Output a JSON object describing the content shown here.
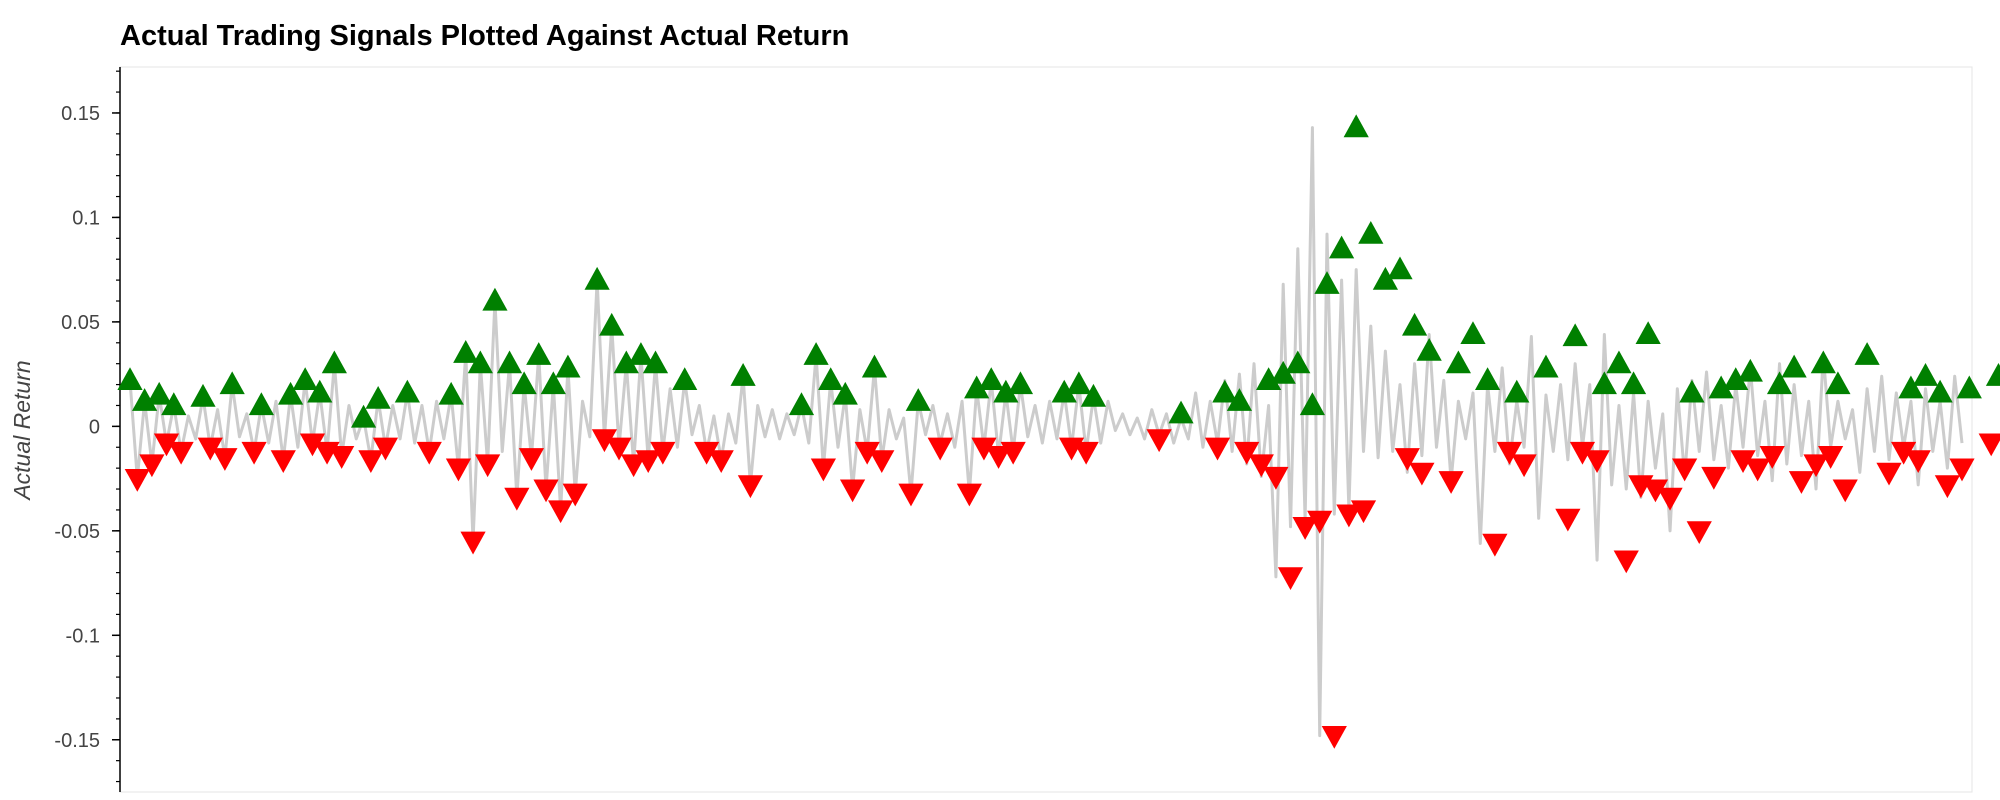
{
  "chart_data": {
    "type": "line",
    "title": "Actual Trading Signals Plotted Against Actual Return",
    "xlabel": "",
    "ylabel": "Actual Return",
    "ylim": [
      -0.175,
      0.172
    ],
    "yticks": [
      {
        "value": 0.15,
        "label": "0.15"
      },
      {
        "value": 0.1,
        "label": "0.1"
      },
      {
        "value": 0.05,
        "label": "0.05"
      },
      {
        "value": 0,
        "label": "0"
      },
      {
        "value": -0.05,
        "label": "-0.05"
      },
      {
        "value": -0.1,
        "label": "-0.1"
      },
      {
        "value": -0.15,
        "label": "-0.15"
      }
    ],
    "x_ticks_shown": false,
    "grid": false,
    "series": [
      {
        "marker": "line",
        "color": "#cccccc"
      },
      {
        "marker": "triangle-up",
        "color": "#008000"
      },
      {
        "marker": "triangle-down",
        "color": "#ff0000"
      }
    ],
    "returns": [
      0.022,
      -0.025,
      0.012,
      -0.018,
      0.015,
      -0.008,
      0.01,
      -0.012,
      0.005,
      -0.006,
      0.014,
      -0.01,
      0.008,
      -0.015,
      0.02,
      -0.005,
      0.006,
      -0.012,
      0.01,
      -0.008,
      0.012,
      -0.016,
      0.015,
      -0.01,
      0.022,
      -0.008,
      0.016,
      -0.012,
      0.03,
      -0.014,
      0.01,
      -0.006,
      0.004,
      -0.016,
      0.013,
      -0.01,
      0.01,
      -0.006,
      0.016,
      -0.008,
      0.01,
      -0.012,
      0.012,
      -0.006,
      0.015,
      -0.02,
      0.035,
      -0.055,
      0.03,
      -0.018,
      0.06,
      -0.012,
      0.03,
      -0.034,
      0.02,
      -0.015,
      0.034,
      -0.03,
      0.02,
      -0.04,
      0.028,
      -0.032,
      0.012,
      -0.005,
      0.07,
      -0.006,
      0.048,
      -0.01,
      0.03,
      -0.018,
      0.034,
      -0.016,
      0.03,
      -0.012,
      0.018,
      -0.01,
      0.022,
      -0.004,
      0.01,
      -0.012,
      0.005,
      -0.016,
      0.006,
      -0.008,
      0.024,
      -0.028,
      0.01,
      -0.005,
      0.008,
      -0.006,
      0.006,
      -0.004,
      0.01,
      -0.008,
      0.034,
      -0.02,
      0.022,
      -0.01,
      0.015,
      -0.03,
      0.008,
      -0.012,
      0.028,
      -0.016,
      0.008,
      -0.006,
      0.004,
      -0.032,
      0.012,
      -0.004,
      0.01,
      -0.008,
      0.006,
      -0.01,
      0.012,
      -0.032,
      0.018,
      -0.01,
      0.022,
      -0.014,
      0.016,
      -0.012,
      0.02,
      -0.005,
      0.01,
      -0.008,
      0.012,
      -0.006,
      0.016,
      -0.01,
      0.02,
      -0.012,
      0.014,
      -0.008,
      0.012,
      -0.002,
      0.006,
      -0.004,
      0.004,
      -0.006,
      0.008,
      -0.004,
      0.006,
      -0.008,
      0.004,
      -0.006,
      0.016,
      -0.01,
      0.012,
      -0.008,
      0.022,
      -0.012,
      0.025,
      -0.018,
      0.03,
      -0.024,
      0.01,
      -0.072,
      0.068,
      -0.048,
      0.085,
      -0.045,
      0.143,
      -0.148,
      0.092,
      -0.042,
      0.07,
      -0.04,
      0.075,
      -0.012,
      0.048,
      -0.015,
      0.036,
      -0.012,
      0.02,
      -0.022,
      0.03,
      -0.014,
      0.044,
      -0.01,
      0.022,
      -0.026,
      0.012,
      -0.006,
      0.016,
      -0.056,
      0.02,
      -0.012,
      0.028,
      -0.018,
      0.012,
      -0.01,
      0.043,
      -0.044,
      0.015,
      -0.012,
      0.02,
      -0.016,
      0.03,
      -0.01,
      0.02,
      -0.064,
      0.044,
      -0.028,
      0.01,
      -0.03,
      0.016,
      -0.034,
      0.012,
      -0.02,
      0.006,
      -0.05,
      0.018,
      -0.024,
      0.022,
      -0.012,
      0.026,
      -0.016,
      0.01,
      -0.02,
      0.02,
      -0.01,
      0.028,
      -0.014,
      0.012,
      -0.026,
      0.03,
      -0.018,
      0.02,
      -0.014,
      0.012,
      -0.03,
      0.034,
      -0.01,
      0.012,
      -0.006,
      0.008,
      -0.022,
      0.018,
      -0.012,
      0.024,
      -0.016,
      0.016,
      -0.01,
      0.012,
      -0.028,
      0.018,
      -0.012,
      0.012,
      -0.02,
      0.024,
      -0.008
    ],
    "buy_signals": [
      [
        0,
        0.022
      ],
      [
        2,
        0.012
      ],
      [
        4,
        0.015
      ],
      [
        6,
        0.01
      ],
      [
        10,
        0.014
      ],
      [
        14,
        0.02
      ],
      [
        18,
        0.01
      ],
      [
        22,
        0.015
      ],
      [
        24,
        0.022
      ],
      [
        26,
        0.016
      ],
      [
        28,
        0.03
      ],
      [
        32,
        0.004
      ],
      [
        34,
        0.013
      ],
      [
        38,
        0.016
      ],
      [
        44,
        0.015
      ],
      [
        46,
        0.035
      ],
      [
        48,
        0.03
      ],
      [
        50,
        0.06
      ],
      [
        52,
        0.03
      ],
      [
        54,
        0.02
      ],
      [
        56,
        0.034
      ],
      [
        58,
        0.02
      ],
      [
        60,
        0.028
      ],
      [
        64,
        0.07
      ],
      [
        66,
        0.048
      ],
      [
        68,
        0.03
      ],
      [
        70,
        0.034
      ],
      [
        72,
        0.03
      ],
      [
        76,
        0.022
      ],
      [
        84,
        0.024
      ],
      [
        92,
        0.01
      ],
      [
        94,
        0.034
      ],
      [
        96,
        0.022
      ],
      [
        98,
        0.015
      ],
      [
        102,
        0.028
      ],
      [
        108,
        0.012
      ],
      [
        116,
        0.018
      ],
      [
        118,
        0.022
      ],
      [
        120,
        0.016
      ],
      [
        122,
        0.02
      ],
      [
        128,
        0.016
      ],
      [
        130,
        0.02
      ],
      [
        132,
        0.014
      ],
      [
        144,
        0.006
      ],
      [
        150,
        0.016
      ],
      [
        152,
        0.012
      ],
      [
        156,
        0.022
      ],
      [
        158,
        0.025
      ],
      [
        160,
        0.03
      ],
      [
        162,
        0.01
      ],
      [
        164,
        0.068
      ],
      [
        166,
        0.085
      ],
      [
        168,
        0.143
      ],
      [
        170,
        0.092
      ],
      [
        172,
        0.07
      ],
      [
        174,
        0.075
      ],
      [
        176,
        0.048
      ],
      [
        178,
        0.036
      ],
      [
        182,
        0.03
      ],
      [
        184,
        0.044
      ],
      [
        186,
        0.022
      ],
      [
        190,
        0.016
      ],
      [
        194,
        0.028
      ],
      [
        198,
        0.043
      ],
      [
        202,
        0.02
      ],
      [
        204,
        0.03
      ],
      [
        206,
        0.02
      ],
      [
        208,
        0.044
      ],
      [
        214,
        0.016
      ],
      [
        218,
        0.018
      ],
      [
        220,
        0.022
      ],
      [
        222,
        0.026
      ],
      [
        226,
        0.02
      ],
      [
        228,
        0.028
      ],
      [
        232,
        0.03
      ],
      [
        234,
        0.02
      ],
      [
        238,
        0.034
      ],
      [
        244,
        0.018
      ],
      [
        246,
        0.024
      ],
      [
        248,
        0.016
      ],
      [
        252,
        0.018
      ],
      [
        256,
        0.024
      ]
    ],
    "sell_signals": [
      [
        1,
        -0.025
      ],
      [
        3,
        -0.018
      ],
      [
        5,
        -0.008
      ],
      [
        7,
        -0.012
      ],
      [
        11,
        -0.01
      ],
      [
        13,
        -0.015
      ],
      [
        17,
        -0.012
      ],
      [
        21,
        -0.016
      ],
      [
        25,
        -0.008
      ],
      [
        27,
        -0.012
      ],
      [
        29,
        -0.014
      ],
      [
        33,
        -0.016
      ],
      [
        35,
        -0.01
      ],
      [
        41,
        -0.012
      ],
      [
        45,
        -0.02
      ],
      [
        47,
        -0.055
      ],
      [
        49,
        -0.018
      ],
      [
        53,
        -0.034
      ],
      [
        55,
        -0.015
      ],
      [
        57,
        -0.03
      ],
      [
        59,
        -0.04
      ],
      [
        61,
        -0.032
      ],
      [
        65,
        -0.006
      ],
      [
        67,
        -0.01
      ],
      [
        69,
        -0.018
      ],
      [
        71,
        -0.016
      ],
      [
        73,
        -0.012
      ],
      [
        79,
        -0.012
      ],
      [
        81,
        -0.016
      ],
      [
        85,
        -0.028
      ],
      [
        95,
        -0.02
      ],
      [
        99,
        -0.03
      ],
      [
        101,
        -0.012
      ],
      [
        103,
        -0.016
      ],
      [
        107,
        -0.032
      ],
      [
        111,
        -0.01
      ],
      [
        115,
        -0.032
      ],
      [
        117,
        -0.01
      ],
      [
        119,
        -0.014
      ],
      [
        121,
        -0.012
      ],
      [
        129,
        -0.01
      ],
      [
        131,
        -0.012
      ],
      [
        141,
        -0.006
      ],
      [
        149,
        -0.01
      ],
      [
        153,
        -0.012
      ],
      [
        155,
        -0.018
      ],
      [
        157,
        -0.024
      ],
      [
        159,
        -0.072
      ],
      [
        161,
        -0.048
      ],
      [
        163,
        -0.045
      ],
      [
        165,
        -0.148
      ],
      [
        167,
        -0.042
      ],
      [
        169,
        -0.04
      ],
      [
        175,
        -0.015
      ],
      [
        177,
        -0.022
      ],
      [
        181,
        -0.026
      ],
      [
        187,
        -0.056
      ],
      [
        189,
        -0.012
      ],
      [
        191,
        -0.018
      ],
      [
        197,
        -0.044
      ],
      [
        199,
        -0.012
      ],
      [
        201,
        -0.016
      ],
      [
        205,
        -0.064
      ],
      [
        207,
        -0.028
      ],
      [
        209,
        -0.03
      ],
      [
        211,
        -0.034
      ],
      [
        213,
        -0.02
      ],
      [
        215,
        -0.05
      ],
      [
        217,
        -0.024
      ],
      [
        221,
        -0.016
      ],
      [
        223,
        -0.02
      ],
      [
        225,
        -0.014
      ],
      [
        229,
        -0.026
      ],
      [
        231,
        -0.018
      ],
      [
        233,
        -0.014
      ],
      [
        235,
        -0.03
      ],
      [
        241,
        -0.022
      ],
      [
        243,
        -0.012
      ],
      [
        245,
        -0.016
      ],
      [
        249,
        -0.028
      ],
      [
        251,
        -0.02
      ],
      [
        255,
        -0.008
      ]
    ]
  }
}
